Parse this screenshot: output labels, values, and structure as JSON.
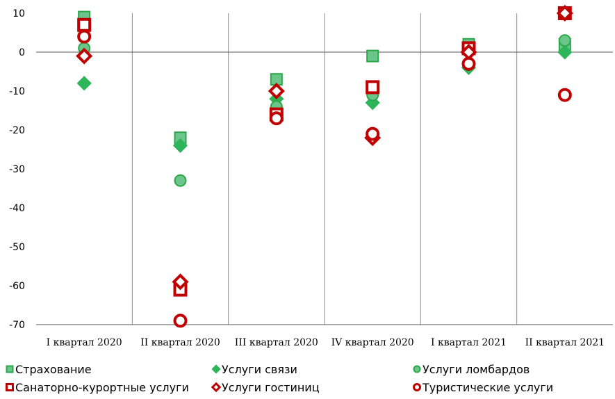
{
  "chart_data": {
    "type": "scatter",
    "categories": [
      "I квартал 2020",
      "II квартал 2020",
      "III квартал 2020",
      "IV квартал 2020",
      "I квартал 2021",
      "II квартал 2021"
    ],
    "ylim": [
      -70,
      10
    ],
    "yticks": [
      "10",
      "0",
      "-10",
      "-20",
      "-30",
      "-40",
      "-50",
      "-60",
      "-70"
    ],
    "grid": "vertical separators between categories",
    "legend_position": "bottom",
    "series": [
      {
        "name": "Страхование",
        "marker": "square",
        "style": "filled",
        "color": "#6cc58a",
        "stroke": "#2aa84a",
        "values": [
          9,
          -22,
          -7,
          -1,
          2,
          2
        ]
      },
      {
        "name": "Услуги связи",
        "marker": "diamond",
        "style": "filled",
        "color": "#2eb55a",
        "stroke": "#2eb55a",
        "values": [
          -8,
          -24,
          -12,
          -13,
          -4,
          0
        ]
      },
      {
        "name": "Услуги ломбардов",
        "marker": "circle",
        "style": "filled",
        "color": "#6cc58a",
        "stroke": "#2aa84a",
        "values": [
          1,
          -33,
          -14,
          -11,
          -3,
          3
        ]
      },
      {
        "name": "Санаторно-курортные услуги",
        "marker": "square",
        "style": "hollow",
        "color": "#c00000",
        "stroke": "#c00000",
        "values": [
          7,
          -61,
          -16,
          -9,
          1,
          10
        ]
      },
      {
        "name": "Услуги гостиниц",
        "marker": "diamond",
        "style": "hollow",
        "color": "#c00000",
        "stroke": "#c00000",
        "values": [
          -1,
          -59,
          -10,
          -22,
          0,
          10
        ]
      },
      {
        "name": "Туристические услуги",
        "marker": "circle",
        "style": "hollow",
        "color": "#c00000",
        "stroke": "#c00000",
        "values": [
          4,
          -69,
          -17,
          -21,
          -3,
          -11
        ]
      }
    ]
  }
}
